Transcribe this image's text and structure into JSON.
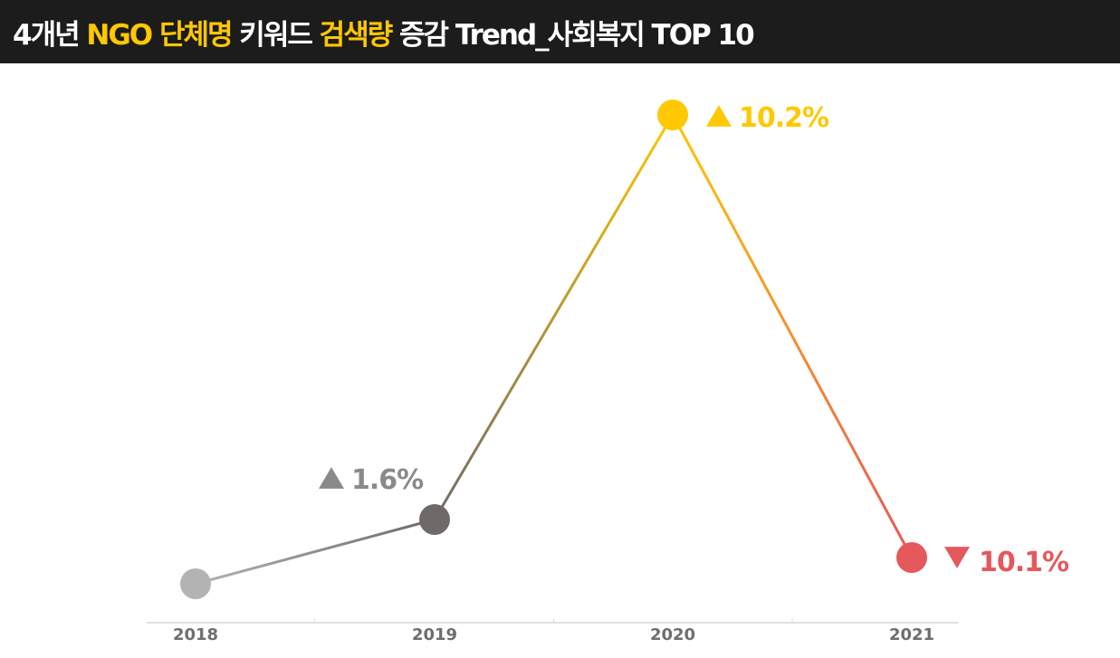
{
  "title": {
    "part1": "4개년 ",
    "part2": "NGO 단체명",
    "part3": " 키워드 ",
    "part4": "검색량",
    "part5": " 증감 Trend_사회복지 TOP 10"
  },
  "chart_data": {
    "type": "line",
    "categories": [
      "2018",
      "2019",
      "2020",
      "2021"
    ],
    "values": [
      0,
      1.6,
      10.2,
      -10.1
    ],
    "labels": [
      {
        "index": 1,
        "arrow": "▲",
        "text": "1.6%"
      },
      {
        "index": 2,
        "arrow": "▲",
        "text": "10.2%"
      },
      {
        "index": 3,
        "arrow": "▼",
        "text": "10.1%"
      }
    ],
    "point_colors": [
      "#b3b3b3",
      "#6f6a68",
      "#ffc800",
      "#e5585c"
    ],
    "label_colors": [
      "#8a8a8a",
      "#8a8a8a",
      "#ffc800",
      "#e5585c"
    ],
    "grid": false,
    "legend": "none"
  }
}
